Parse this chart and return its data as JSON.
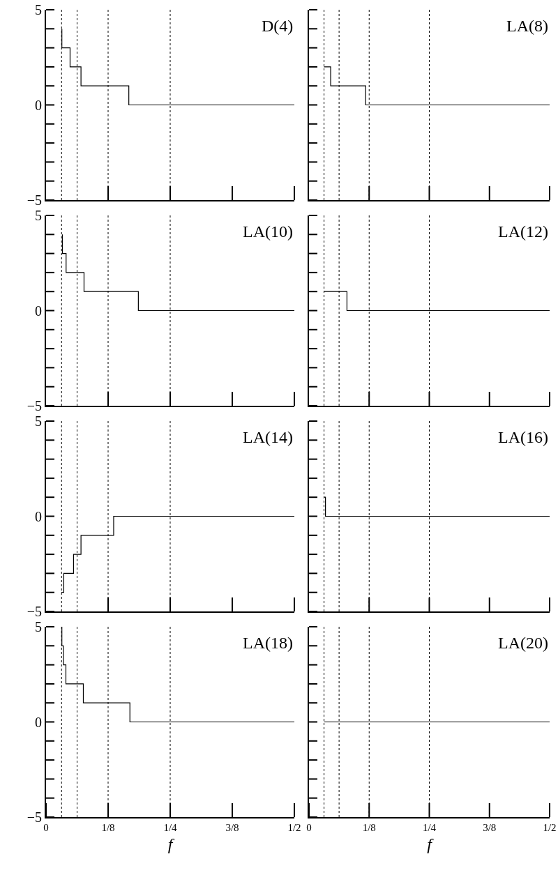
{
  "chart_data": [
    {
      "type": "step",
      "title": "D(4)",
      "xlim": [
        0,
        0.5
      ],
      "ylim": [
        -5,
        5
      ],
      "tick_labels": "y",
      "series": [
        {
          "color": "#000000",
          "x": [
            0.0319,
            0.0319,
            0.0484,
            0.0704,
            0.1667,
            0.5
          ],
          "values": [
            4,
            3,
            2,
            1,
            0,
            0
          ]
        }
      ],
      "xticks": [
        {
          "value": 0.125,
          "label": null
        },
        {
          "value": 0.25,
          "label": null
        },
        {
          "value": 0.375,
          "label": null
        },
        {
          "value": 0.5,
          "label": null
        }
      ],
      "yticks": [
        -5,
        {
          "value": -4,
          "label": null
        },
        {
          "value": -3,
          "label": null
        },
        {
          "value": -2,
          "label": null
        },
        {
          "value": -1,
          "label": null
        },
        0,
        {
          "value": 1,
          "label": null
        },
        {
          "value": 2,
          "label": null
        },
        {
          "value": 3,
          "label": null
        },
        {
          "value": 4,
          "label": null
        },
        5
      ],
      "ref_lines": [
        {
          "axis": "x",
          "value": 0.03125,
          "color": "#000000",
          "line_style": "dotted"
        },
        {
          "axis": "x",
          "value": 0.0625,
          "color": "#000000",
          "line_style": "dotted"
        },
        {
          "axis": "x",
          "value": 0.125,
          "color": "#000000",
          "line_style": "dotted"
        },
        {
          "axis": "x",
          "value": 0.25,
          "color": "#000000",
          "line_style": "dotted"
        }
      ]
    },
    {
      "type": "step",
      "title": "LA(8)",
      "xlim": [
        0,
        0.5
      ],
      "ylim": [
        -5,
        5
      ],
      "tick_labels": false,
      "series": [
        {
          "color": "#000000",
          "x": [
            0.031,
            0.045,
            0.1178,
            0.5
          ],
          "values": [
            2,
            1,
            0,
            0
          ]
        }
      ],
      "xticks": [
        {
          "value": 0.125,
          "label": null
        },
        {
          "value": 0.25,
          "label": null
        },
        {
          "value": 0.375,
          "label": null
        },
        {
          "value": 0.5,
          "label": null
        }
      ],
      "yticks": [
        -5,
        {
          "value": -4,
          "label": null
        },
        {
          "value": -3,
          "label": null
        },
        {
          "value": -2,
          "label": null
        },
        {
          "value": -1,
          "label": null
        },
        0,
        {
          "value": 1,
          "label": null
        },
        {
          "value": 2,
          "label": null
        },
        {
          "value": 3,
          "label": null
        },
        {
          "value": 4,
          "label": null
        },
        5
      ],
      "ref_lines": [
        {
          "axis": "x",
          "value": 0.03125,
          "color": "#000000",
          "line_style": "dotted"
        },
        {
          "axis": "x",
          "value": 0.0625,
          "color": "#000000",
          "line_style": "dotted"
        },
        {
          "axis": "x",
          "value": 0.125,
          "color": "#000000",
          "line_style": "dotted"
        },
        {
          "axis": "x",
          "value": 0.25,
          "color": "#000000",
          "line_style": "dotted"
        }
      ]
    },
    {
      "type": "step",
      "title": "LA(10)",
      "xlim": [
        0,
        0.5
      ],
      "ylim": [
        -5,
        5
      ],
      "tick_labels": "y",
      "series": [
        {
          "color": "#000000",
          "x": [
            0.0329,
            0.0329,
            0.0404,
            0.0765,
            0.1859,
            0.5
          ],
          "values": [
            4,
            3,
            2,
            1,
            0,
            0
          ]
        }
      ],
      "xticks": [
        {
          "value": 0.125,
          "label": null
        },
        {
          "value": 0.25,
          "label": null
        },
        {
          "value": 0.375,
          "label": null
        },
        {
          "value": 0.5,
          "label": null
        }
      ],
      "yticks": [
        -5,
        {
          "value": -4,
          "label": null
        },
        {
          "value": -3,
          "label": null
        },
        {
          "value": -2,
          "label": null
        },
        {
          "value": -1,
          "label": null
        },
        0,
        {
          "value": 1,
          "label": null
        },
        {
          "value": 2,
          "label": null
        },
        {
          "value": 3,
          "label": null
        },
        {
          "value": 4,
          "label": null
        },
        5
      ],
      "ref_lines": [
        {
          "axis": "x",
          "value": 0.03125,
          "color": "#000000",
          "line_style": "dotted"
        },
        {
          "axis": "x",
          "value": 0.0625,
          "color": "#000000",
          "line_style": "dotted"
        },
        {
          "axis": "x",
          "value": 0.125,
          "color": "#000000",
          "line_style": "dotted"
        },
        {
          "axis": "x",
          "value": 0.25,
          "color": "#000000",
          "line_style": "dotted"
        }
      ]
    },
    {
      "type": "step",
      "title": "LA(12)",
      "xlim": [
        0,
        0.5
      ],
      "ylim": [
        -5,
        5
      ],
      "tick_labels": false,
      "series": [
        {
          "color": "#000000",
          "x": [
            0.031,
            0.0789,
            0.5
          ],
          "values": [
            1,
            0,
            0
          ]
        }
      ],
      "xticks": [
        {
          "value": 0.125,
          "label": null
        },
        {
          "value": 0.25,
          "label": null
        },
        {
          "value": 0.375,
          "label": null
        },
        {
          "value": 0.5,
          "label": null
        }
      ],
      "yticks": [
        -5,
        {
          "value": -4,
          "label": null
        },
        {
          "value": -3,
          "label": null
        },
        {
          "value": -2,
          "label": null
        },
        {
          "value": -1,
          "label": null
        },
        0,
        {
          "value": 1,
          "label": null
        },
        {
          "value": 2,
          "label": null
        },
        {
          "value": 3,
          "label": null
        },
        {
          "value": 4,
          "label": null
        },
        5
      ],
      "ref_lines": [
        {
          "axis": "x",
          "value": 0.03125,
          "color": "#000000",
          "line_style": "dotted"
        },
        {
          "axis": "x",
          "value": 0.0625,
          "color": "#000000",
          "line_style": "dotted"
        },
        {
          "axis": "x",
          "value": 0.125,
          "color": "#000000",
          "line_style": "dotted"
        },
        {
          "axis": "x",
          "value": 0.25,
          "color": "#000000",
          "line_style": "dotted"
        }
      ]
    },
    {
      "type": "step",
      "title": "LA(14)",
      "xlim": [
        0,
        0.5
      ],
      "ylim": [
        -5,
        5
      ],
      "tick_labels": "y",
      "series": [
        {
          "color": "#000000",
          "x": [
            0.031,
            0.0357,
            0.0554,
            0.0704,
            0.1362,
            0.5
          ],
          "values": [
            -4,
            -3,
            -2,
            -1,
            0,
            0
          ]
        }
      ],
      "xticks": [
        {
          "value": 0.125,
          "label": null
        },
        {
          "value": 0.25,
          "label": null
        },
        {
          "value": 0.375,
          "label": null
        },
        {
          "value": 0.5,
          "label": null
        }
      ],
      "yticks": [
        -5,
        {
          "value": -4,
          "label": null
        },
        {
          "value": -3,
          "label": null
        },
        {
          "value": -2,
          "label": null
        },
        {
          "value": -1,
          "label": null
        },
        0,
        {
          "value": 1,
          "label": null
        },
        {
          "value": 2,
          "label": null
        },
        {
          "value": 3,
          "label": null
        },
        {
          "value": 4,
          "label": null
        },
        5
      ],
      "ref_lines": [
        {
          "axis": "x",
          "value": 0.03125,
          "color": "#000000",
          "line_style": "dotted"
        },
        {
          "axis": "x",
          "value": 0.0625,
          "color": "#000000",
          "line_style": "dotted"
        },
        {
          "axis": "x",
          "value": 0.125,
          "color": "#000000",
          "line_style": "dotted"
        },
        {
          "axis": "x",
          "value": 0.25,
          "color": "#000000",
          "line_style": "dotted"
        }
      ]
    },
    {
      "type": "step",
      "title": "LA(16)",
      "xlim": [
        0,
        0.5
      ],
      "ylim": [
        -5,
        5
      ],
      "tick_labels": false,
      "series": [
        {
          "color": "#000000",
          "x": [
            0.031,
            0.0342,
            0.5
          ],
          "values": [
            1,
            0,
            0
          ]
        }
      ],
      "xticks": [
        {
          "value": 0.125,
          "label": null
        },
        {
          "value": 0.25,
          "label": null
        },
        {
          "value": 0.375,
          "label": null
        },
        {
          "value": 0.5,
          "label": null
        }
      ],
      "yticks": [
        -5,
        {
          "value": -4,
          "label": null
        },
        {
          "value": -3,
          "label": null
        },
        {
          "value": -2,
          "label": null
        },
        {
          "value": -1,
          "label": null
        },
        0,
        {
          "value": 1,
          "label": null
        },
        {
          "value": 2,
          "label": null
        },
        {
          "value": 3,
          "label": null
        },
        {
          "value": 4,
          "label": null
        },
        5
      ],
      "ref_lines": [
        {
          "axis": "x",
          "value": 0.03125,
          "color": "#000000",
          "line_style": "dotted"
        },
        {
          "axis": "x",
          "value": 0.0625,
          "color": "#000000",
          "line_style": "dotted"
        },
        {
          "axis": "x",
          "value": 0.125,
          "color": "#000000",
          "line_style": "dotted"
        },
        {
          "axis": "x",
          "value": 0.25,
          "color": "#000000",
          "line_style": "dotted"
        }
      ]
    },
    {
      "type": "step",
      "title": "LA(18)",
      "xlabel": "f",
      "xlim": [
        0,
        0.5
      ],
      "ylim": [
        -5,
        5
      ],
      "series": [
        {
          "color": "#000000",
          "x": [
            0.0319,
            0.0319,
            0.035,
            0.04,
            0.0751,
            0.1689,
            0.5
          ],
          "values": [
            5,
            4,
            3,
            2,
            1,
            0,
            0
          ]
        }
      ],
      "xticks": [
        0,
        {
          "value": 0.125,
          "label": "1/8"
        },
        {
          "value": 0.25,
          "label": "1/4"
        },
        {
          "value": 0.375,
          "label": "3/8"
        },
        {
          "value": 0.5,
          "label": "1/2"
        }
      ],
      "yticks": [
        -5,
        {
          "value": -4,
          "label": null
        },
        {
          "value": -3,
          "label": null
        },
        {
          "value": -2,
          "label": null
        },
        {
          "value": -1,
          "label": null
        },
        0,
        {
          "value": 1,
          "label": null
        },
        {
          "value": 2,
          "label": null
        },
        {
          "value": 3,
          "label": null
        },
        {
          "value": 4,
          "label": null
        },
        5
      ],
      "ref_lines": [
        {
          "axis": "x",
          "value": 0.03125,
          "color": "#000000",
          "line_style": "dotted"
        },
        {
          "axis": "x",
          "value": 0.0625,
          "color": "#000000",
          "line_style": "dotted"
        },
        {
          "axis": "x",
          "value": 0.125,
          "color": "#000000",
          "line_style": "dotted"
        },
        {
          "axis": "x",
          "value": 0.25,
          "color": "#000000",
          "line_style": "dotted"
        }
      ]
    },
    {
      "type": "step",
      "title": "LA(20)",
      "xlabel": "f",
      "xlim": [
        0,
        0.5
      ],
      "ylim": [
        -5,
        5
      ],
      "tick_labels": "x",
      "series": [
        {
          "color": "#000000",
          "x": [
            0.031,
            0.5
          ],
          "values": [
            0,
            0
          ]
        }
      ],
      "xticks": [
        0,
        {
          "value": 0.125,
          "label": "1/8"
        },
        {
          "value": 0.25,
          "label": "1/4"
        },
        {
          "value": 0.375,
          "label": "3/8"
        },
        {
          "value": 0.5,
          "label": "1/2"
        }
      ],
      "yticks": [
        {
          "value": -5,
          "label": null
        },
        {
          "value": -4,
          "label": null
        },
        {
          "value": -3,
          "label": null
        },
        {
          "value": -2,
          "label": null
        },
        {
          "value": -1,
          "label": null
        },
        {
          "value": 0,
          "label": null
        },
        {
          "value": 1,
          "label": null
        },
        {
          "value": 2,
          "label": null
        },
        {
          "value": 3,
          "label": null
        },
        {
          "value": 4,
          "label": null
        },
        {
          "value": 5,
          "label": null
        }
      ],
      "ref_lines": [
        {
          "axis": "x",
          "value": 0.03125,
          "color": "#000000",
          "line_style": "dotted"
        },
        {
          "axis": "x",
          "value": 0.0625,
          "color": "#000000",
          "line_style": "dotted"
        },
        {
          "axis": "x",
          "value": 0.125,
          "color": "#000000",
          "line_style": "dotted"
        },
        {
          "axis": "x",
          "value": 0.25,
          "color": "#000000",
          "line_style": "dotted"
        }
      ]
    }
  ]
}
